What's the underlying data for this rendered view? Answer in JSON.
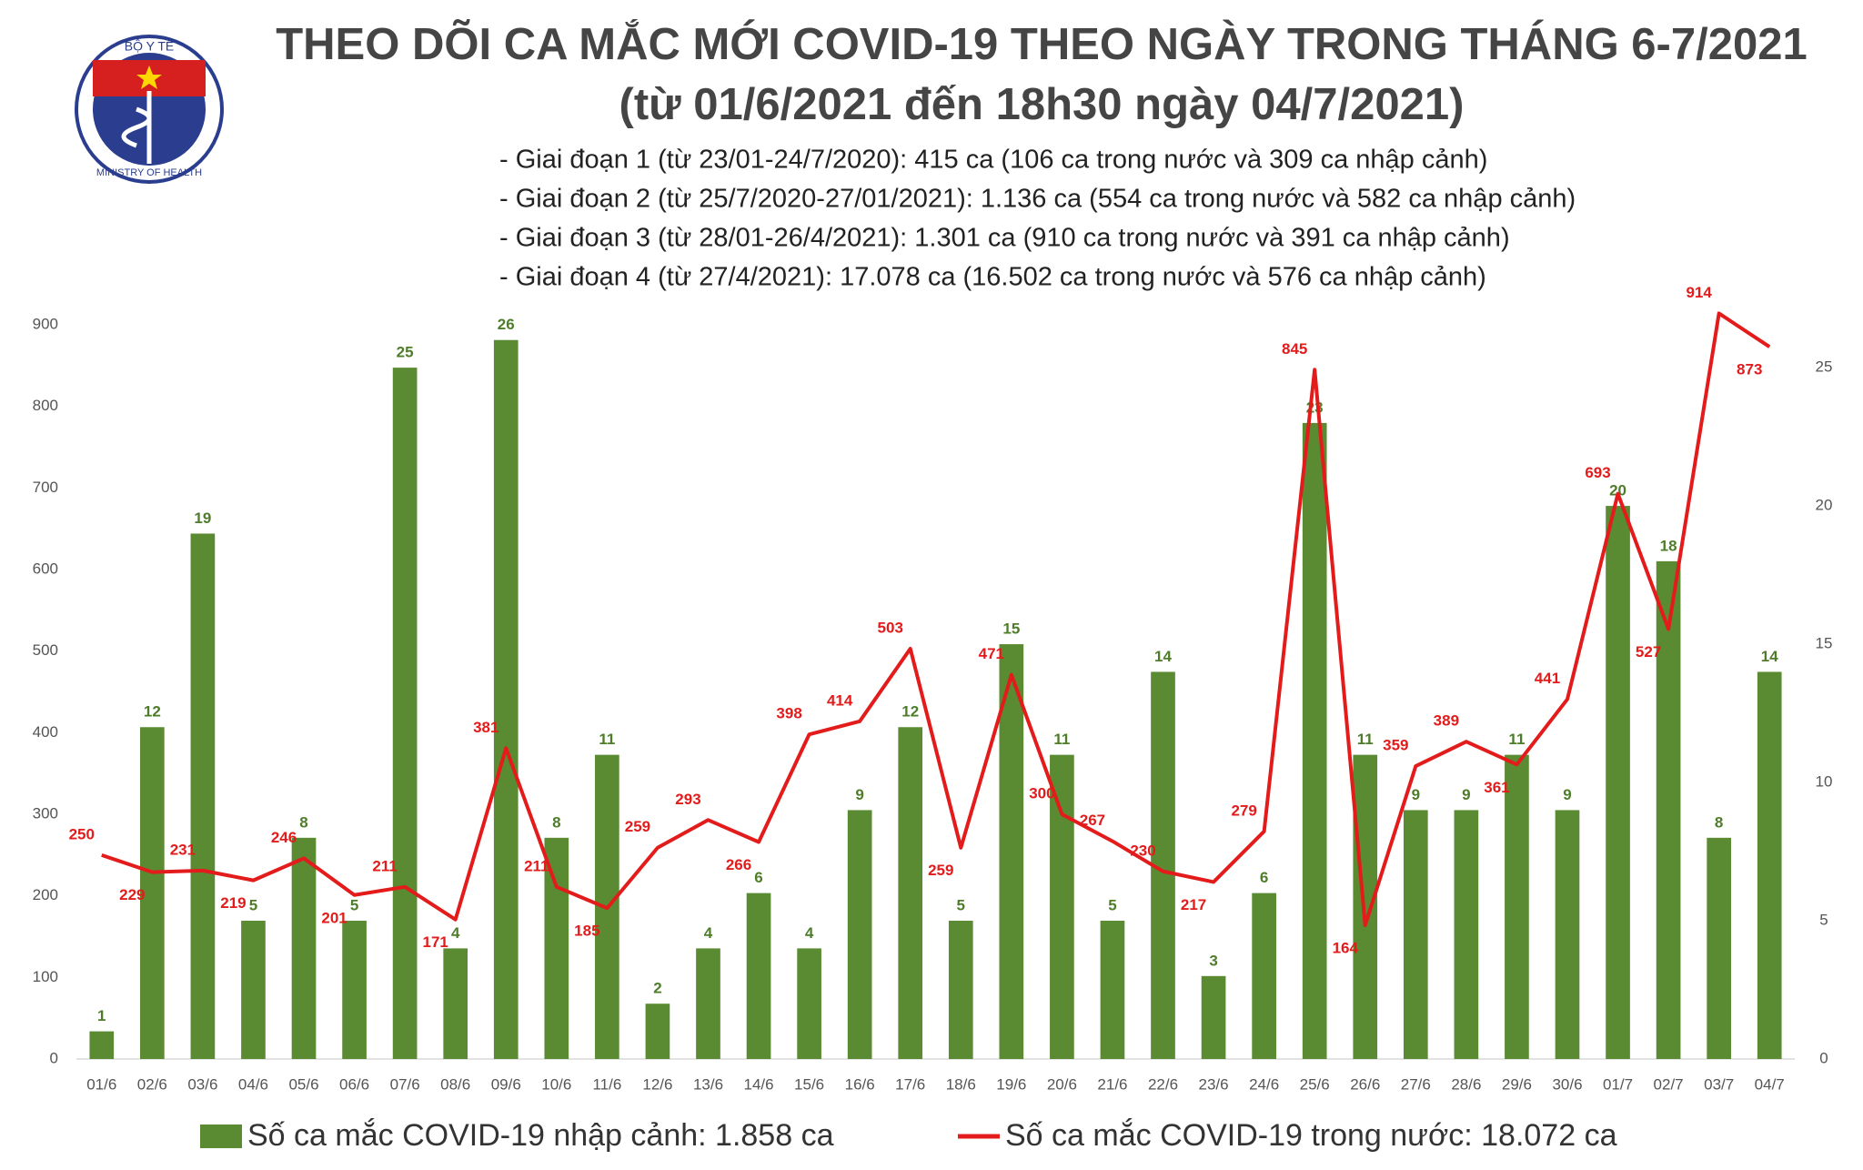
{
  "logo": {
    "top_text": "BỘ Y TẾ",
    "bottom_text": "MINISTRY OF HEALTH"
  },
  "chart_data": {
    "type": "bar-line",
    "title": "THEO DÕI CA MẮC MỚI COVID-19 THEO NGÀY TRONG THÁNG 6-7/2021",
    "subtitle": "(từ 01/6/2021 đến 18h30 ngày 04/7/2021)",
    "annotations": [
      "- Giai đoạn 1 (từ 23/01-24/7/2020): 415 ca (106 ca trong nước và 309 ca nhập cảnh)",
      "- Giai đoạn 2 (từ 25/7/2020-27/01/2021): 1.136 ca (554 ca trong nước và 582 ca nhập cảnh)",
      "- Giai đoạn 3 (từ 28/01-26/4/2021): 1.301 ca (910 ca trong nước và 391 ca nhập cảnh)",
      "- Giai đoạn 4 (từ 27/4/2021): 17.078 ca (16.502 ca trong nước và 576 ca nhập cảnh)"
    ],
    "categories": [
      "01/6",
      "02/6",
      "03/6",
      "04/6",
      "05/6",
      "06/6",
      "07/6",
      "08/6",
      "09/6",
      "10/6",
      "11/6",
      "12/6",
      "13/6",
      "14/6",
      "15/6",
      "16/6",
      "17/6",
      "18/6",
      "19/6",
      "20/6",
      "21/6",
      "22/6",
      "23/6",
      "24/6",
      "25/6",
      "26/6",
      "27/6",
      "28/6",
      "29/6",
      "30/6",
      "01/7",
      "02/7",
      "03/7",
      "04/7"
    ],
    "series": [
      {
        "name": "Số ca mắc COVID-19 nhập cảnh: 1.858 ca",
        "type": "bar",
        "axis": "y2",
        "color": "#5a8a32",
        "values": [
          1,
          12,
          19,
          5,
          8,
          5,
          25,
          4,
          26,
          8,
          11,
          2,
          4,
          6,
          4,
          9,
          12,
          5,
          15,
          11,
          5,
          14,
          3,
          6,
          23,
          11,
          9,
          9,
          11,
          9,
          20,
          18,
          8,
          14
        ]
      },
      {
        "name": "Số ca mắc COVID-19 trong nước: 18.072 ca",
        "type": "line",
        "axis": "y",
        "color": "#e31b1b",
        "values": [
          250,
          229,
          231,
          219,
          246,
          201,
          211,
          171,
          381,
          211,
          185,
          259,
          293,
          266,
          398,
          414,
          503,
          259,
          471,
          300,
          267,
          230,
          217,
          279,
          845,
          164,
          359,
          389,
          361,
          441,
          693,
          527,
          914,
          873
        ]
      }
    ],
    "ylim": [
      0,
      900
    ],
    "yticks": [
      0,
      100,
      200,
      300,
      400,
      500,
      600,
      700,
      800,
      900
    ],
    "y2lim": [
      0,
      26.55
    ],
    "y2ticks": [
      0,
      5,
      10,
      15,
      20,
      25
    ]
  }
}
